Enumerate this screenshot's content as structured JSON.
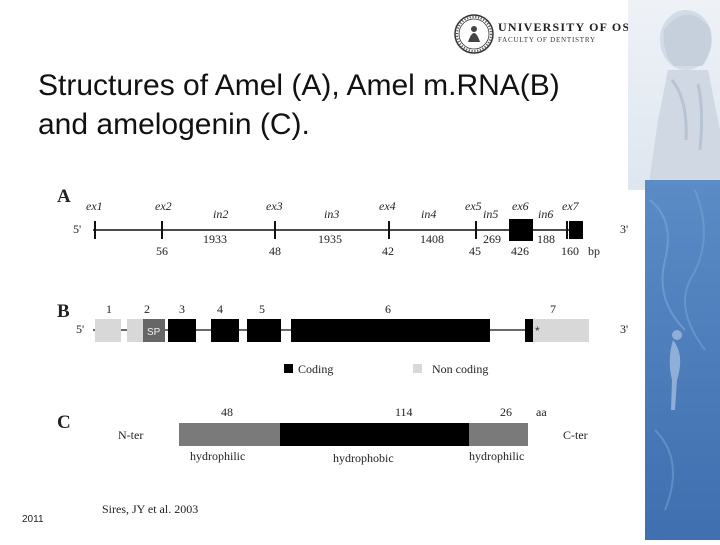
{
  "header": {
    "university": "UNIVERSITY OF OSLO",
    "faculty": "FACULTY OF DENTISTRY"
  },
  "title": {
    "line1": "Structures of Amel (A), Amel m.RNA(B)",
    "line2": "and amelogenin (C)."
  },
  "footer": {
    "year": "2011",
    "citation": "Sires, JY et al. 2003"
  },
  "diagram": {
    "panelA": {
      "label": "A",
      "end5": "5'",
      "end3": "3'",
      "exons": [
        "ex1",
        "ex2",
        "ex3",
        "ex4",
        "ex5",
        "ex6",
        "ex7"
      ],
      "introns": [
        "in2",
        "in3",
        "in4",
        "in5",
        "in6"
      ],
      "sizes": [
        "56",
        "1933",
        "48",
        "1935",
        "42",
        "1408",
        "45",
        "269",
        "426",
        "188",
        "160",
        "bp"
      ]
    },
    "panelB": {
      "label": "B",
      "end5": "5'",
      "end3": "3'",
      "exon_numbers": [
        "1",
        "2",
        "3",
        "4",
        "5",
        "6",
        "7"
      ],
      "sp_label": "SP",
      "stop_marker": "*",
      "legend": {
        "coding": "Coding",
        "noncoding": "Non coding"
      }
    },
    "panelC": {
      "label": "C",
      "nter": "N-ter",
      "cter": "C-ter",
      "counts": [
        "48",
        "114",
        "26",
        "aa"
      ],
      "domains": [
        "hydrophilic",
        "hydrophobic",
        "hydrophilic"
      ]
    },
    "colors": {
      "coding": "#000000",
      "noncoding": "#d8d8d8",
      "sp": "#666666",
      "hydrophilic": "#7a7a7a",
      "hydrophobic": "#000000"
    }
  }
}
